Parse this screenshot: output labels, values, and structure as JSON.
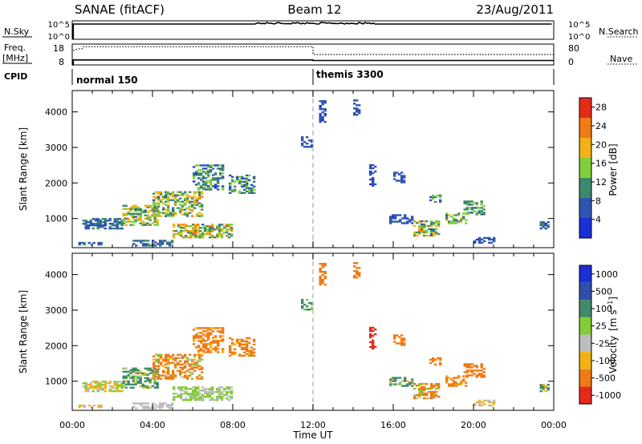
{
  "header": {
    "title": "SANAE (fitACF)",
    "beam": "Beam 12",
    "date": "23/Aug/2011"
  },
  "labels": {
    "nsky": "N.Sky",
    "nsearch": "N.Search",
    "freq1": "Freq.",
    "freq2": "[MHz]",
    "nave": "Nave",
    "cpid": "CPID",
    "slant_range": "Slant Range [km]",
    "power": "Power [dB]",
    "velocity_prefix": "Velocity",
    "velocity_unit": "[m s",
    "velocity_exp": "−1",
    "velocity_close": "]",
    "time_ut": "Time UT"
  },
  "ticks": {
    "nsky_left": [
      "10^5",
      "10^0"
    ],
    "nsky_right": [
      "10^5",
      "10^0"
    ],
    "freq_left": [
      "18",
      "8"
    ],
    "nave_right": [
      "80",
      "0"
    ],
    "range": [
      "1000",
      "2000",
      "3000",
      "4000"
    ],
    "power": [
      "4",
      "8",
      "12",
      "16",
      "20",
      "24",
      "28"
    ],
    "velocity": [
      "1000",
      "500",
      "100",
      "25",
      "-25",
      "-100",
      "-500",
      "-1000"
    ],
    "time": [
      "00:00",
      "04:00",
      "08:00",
      "12:00",
      "16:00",
      "20:00",
      "00:00"
    ]
  },
  "cpid_modes": [
    {
      "label": "normal 150",
      "start_hour": 0
    },
    {
      "label": "themis 3300",
      "start_hour": 12
    }
  ],
  "colors": {
    "power": [
      "#1b2fd6",
      "#2f55b0",
      "#3c8a6e",
      "#7fcf3a",
      "#f2b216",
      "#f07a14",
      "#e52a1a"
    ],
    "velocity": [
      "#1b2fd6",
      "#2f4fa8",
      "#3f8a6a",
      "#82cc36",
      "#bdbdbd",
      "#f2b216",
      "#f07a14",
      "#e52a1a"
    ]
  },
  "chart_data": [
    {
      "type": "heatmap",
      "quantity": "power",
      "x_range_hours": [
        0,
        24
      ],
      "y_range_km": [
        180,
        4600
      ],
      "color_scale": [
        0,
        30
      ],
      "clusters": [
        {
          "t": [
            0.3,
            1.5
          ],
          "r": [
            250,
            320
          ],
          "level": [
            4,
            10
          ]
        },
        {
          "t": [
            0.5,
            2.5
          ],
          "r": [
            700,
            1000
          ],
          "level": [
            4,
            12
          ]
        },
        {
          "t": [
            2.5,
            4.2
          ],
          "r": [
            800,
            1350
          ],
          "level": [
            8,
            20
          ]
        },
        {
          "t": [
            4.0,
            6.5
          ],
          "r": [
            1050,
            1750
          ],
          "level": [
            8,
            22
          ]
        },
        {
          "t": [
            6.0,
            7.5
          ],
          "r": [
            1800,
            2500
          ],
          "level": [
            4,
            16
          ]
        },
        {
          "t": [
            7.8,
            9.0
          ],
          "r": [
            1700,
            2200
          ],
          "level": [
            4,
            16
          ]
        },
        {
          "t": [
            5.0,
            8.0
          ],
          "r": [
            450,
            850
          ],
          "level": [
            8,
            24
          ]
        },
        {
          "t": [
            3.0,
            5.0
          ],
          "r": [
            220,
            400
          ],
          "level": [
            4,
            12
          ]
        },
        {
          "t": [
            11.4,
            11.9
          ],
          "r": [
            3000,
            3300
          ],
          "level": [
            4,
            8
          ]
        },
        {
          "t": [
            12.3,
            12.6
          ],
          "r": [
            3700,
            4300
          ],
          "level": [
            4,
            8
          ]
        },
        {
          "t": [
            14.0,
            14.3
          ],
          "r": [
            3900,
            4350
          ],
          "level": [
            4,
            8
          ]
        },
        {
          "t": [
            14.8,
            15.1
          ],
          "r": [
            1900,
            2500
          ],
          "level": [
            4,
            8
          ]
        },
        {
          "t": [
            16.0,
            16.5
          ],
          "r": [
            2000,
            2300
          ],
          "level": [
            4,
            8
          ]
        },
        {
          "t": [
            15.8,
            17.0
          ],
          "r": [
            850,
            1100
          ],
          "level": [
            4,
            8
          ]
        },
        {
          "t": [
            17.0,
            18.3
          ],
          "r": [
            500,
            950
          ],
          "level": [
            8,
            22
          ]
        },
        {
          "t": [
            18.6,
            19.6
          ],
          "r": [
            850,
            1150
          ],
          "level": [
            8,
            18
          ]
        },
        {
          "t": [
            17.8,
            18.5
          ],
          "r": [
            1450,
            1650
          ],
          "level": [
            8,
            16
          ]
        },
        {
          "t": [
            19.5,
            20.5
          ],
          "r": [
            1100,
            1500
          ],
          "level": [
            8,
            16
          ]
        },
        {
          "t": [
            20.0,
            21.0
          ],
          "r": [
            300,
            450
          ],
          "level": [
            4,
            8
          ]
        },
        {
          "t": [
            23.3,
            23.7
          ],
          "r": [
            700,
            900
          ],
          "level": [
            4,
            12
          ]
        }
      ]
    },
    {
      "type": "heatmap",
      "quantity": "velocity",
      "x_range_hours": [
        0,
        24
      ],
      "y_range_km": [
        180,
        4600
      ],
      "color_scale": [
        -1000,
        1000
      ],
      "clusters": [
        {
          "t": [
            0.3,
            1.5
          ],
          "r": [
            250,
            320
          ],
          "vel": [
            -100,
            25
          ]
        },
        {
          "t": [
            0.5,
            2.5
          ],
          "r": [
            700,
            1000
          ],
          "vel": [
            -100,
            100
          ]
        },
        {
          "t": [
            2.5,
            4.2
          ],
          "r": [
            800,
            1350
          ],
          "vel": [
            -100,
            500
          ]
        },
        {
          "t": [
            4.0,
            6.5
          ],
          "r": [
            1050,
            1750
          ],
          "vel": [
            -500,
            100
          ]
        },
        {
          "t": [
            6.0,
            7.5
          ],
          "r": [
            1800,
            2500
          ],
          "vel": [
            -500,
            -25
          ]
        },
        {
          "t": [
            7.8,
            9.0
          ],
          "r": [
            1700,
            2200
          ],
          "vel": [
            -500,
            -25
          ]
        },
        {
          "t": [
            5.0,
            8.0
          ],
          "r": [
            450,
            850
          ],
          "vel": [
            -25,
            100
          ]
        },
        {
          "t": [
            3.0,
            5.0
          ],
          "r": [
            220,
            400
          ],
          "vel": [
            -25,
            25
          ]
        },
        {
          "t": [
            11.4,
            11.9
          ],
          "r": [
            3000,
            3300
          ],
          "vel": [
            -100,
            500
          ]
        },
        {
          "t": [
            12.3,
            12.6
          ],
          "r": [
            3700,
            4300
          ],
          "vel": [
            -500,
            -100
          ]
        },
        {
          "t": [
            14.0,
            14.3
          ],
          "r": [
            3900,
            4350
          ],
          "vel": [
            -500,
            -100
          ]
        },
        {
          "t": [
            14.8,
            15.1
          ],
          "r": [
            1900,
            2500
          ],
          "vel": [
            -1000,
            -500
          ]
        },
        {
          "t": [
            16.0,
            16.5
          ],
          "r": [
            2000,
            2300
          ],
          "vel": [
            -500,
            -100
          ]
        },
        {
          "t": [
            15.8,
            17.0
          ],
          "r": [
            850,
            1100
          ],
          "vel": [
            -100,
            500
          ]
        },
        {
          "t": [
            17.0,
            18.3
          ],
          "r": [
            500,
            950
          ],
          "vel": [
            -500,
            100
          ]
        },
        {
          "t": [
            18.6,
            19.6
          ],
          "r": [
            850,
            1150
          ],
          "vel": [
            -500,
            -25
          ]
        },
        {
          "t": [
            17.8,
            18.5
          ],
          "r": [
            1450,
            1650
          ],
          "vel": [
            -500,
            -100
          ]
        },
        {
          "t": [
            19.5,
            20.5
          ],
          "r": [
            1100,
            1500
          ],
          "vel": [
            -500,
            -100
          ]
        },
        {
          "t": [
            20.0,
            21.0
          ],
          "r": [
            300,
            450
          ],
          "vel": [
            -100,
            25
          ]
        },
        {
          "t": [
            23.3,
            23.7
          ],
          "r": [
            700,
            900
          ],
          "vel": [
            -100,
            500
          ]
        }
      ]
    }
  ]
}
